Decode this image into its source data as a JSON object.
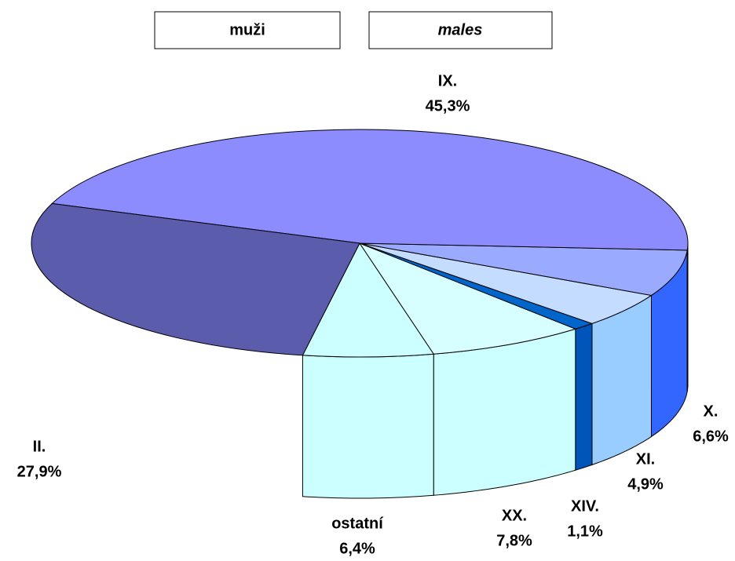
{
  "chart_data": {
    "type": "pie3d",
    "title": "muži",
    "subtitle": "males",
    "categories": [
      "ostatní",
      "XX.",
      "XIV.",
      "XI.",
      "X.",
      "IX.",
      "II."
    ],
    "values": [
      6.4,
      7.8,
      1.1,
      4.9,
      6.6,
      45.3,
      27.9
    ],
    "value_labels": [
      "6,4%",
      "7,8%",
      "1,1%",
      "4,9%",
      "6,6%",
      "45,3%",
      "27,9%"
    ],
    "colors": [
      "#ccffff",
      "#d8ffff",
      "#0066cc",
      "#c4dcff",
      "#99aaff",
      "#8c8cff",
      "#5c5cac"
    ],
    "side_colors": [
      "#ccffff",
      "#ccffff",
      "#0055bb",
      "#99ccff",
      "#3366ff",
      "#3333cc",
      "#000080"
    ]
  }
}
